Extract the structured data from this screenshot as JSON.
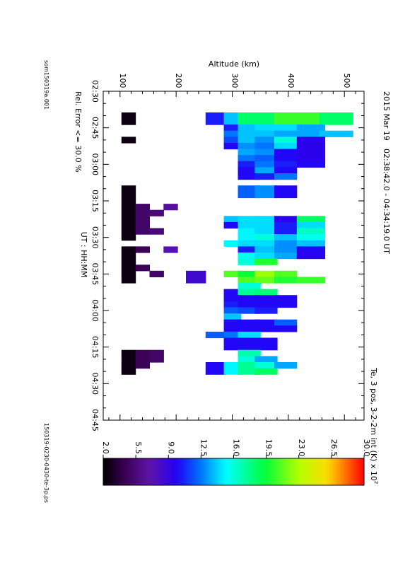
{
  "header": {
    "date": "2015 Mar 19",
    "time_range": "02:38:42.0 - 04:34:19.0 UT",
    "parameter": "Te, 3 pos, 3-2-2m int (K) x 10",
    "parameter_exponent": "2"
  },
  "footer": {
    "rel_error": "Rel. Error <= 30.0 %",
    "left_id": "som150319a.001",
    "right_id": "150319-0230-0430-te-3p.ps"
  },
  "chart_data": {
    "type": "heatmap",
    "title": "",
    "xlabel": "UT : HH:MM",
    "ylabel": "Altitude (km)",
    "x_ticks": [
      "02:30",
      "02:45",
      "03:00",
      "03:15",
      "03:30",
      "03:45",
      "04:00",
      "04:15",
      "04:30",
      "04:45"
    ],
    "y_ticks": [
      "100",
      "200",
      "300",
      "400",
      "500"
    ],
    "x_range_minutes_ut": [
      150,
      285
    ],
    "y_range_km": [
      70,
      535
    ],
    "colorbar": {
      "range": [
        2.0,
        30.0
      ],
      "ticks": [
        "2.0",
        "5.5",
        "9.0",
        "12.5",
        "16.0",
        "19.5",
        "23.0",
        "26.5",
        "30.0"
      ]
    },
    "cell_width_minutes": 2.5,
    "altitude_bins_km": [
      115,
      140,
      165,
      190,
      235,
      270,
      300,
      330,
      360,
      395,
      440,
      485
    ],
    "altitude_bin_heights_km": [
      25,
      25,
      25,
      25,
      35,
      35,
      30,
      40,
      40,
      40,
      50,
      60
    ],
    "columns": [
      {
        "t": "02:38:42",
        "values": [
          2.5,
          null,
          null,
          null,
          null,
          10.5,
          14.0,
          18.5,
          18.5,
          20.5,
          20.5,
          18.5
        ]
      },
      {
        "t": "02:41:11",
        "values": [
          2.5,
          null,
          null,
          null,
          null,
          10.5,
          14.0,
          18.5,
          18.5,
          20.5,
          20.5,
          18.5
        ]
      },
      {
        "t": "02:43:41",
        "values": [
          null,
          null,
          null,
          null,
          null,
          null,
          10.5,
          14.0,
          14.5,
          14.5,
          13.5,
          null
        ]
      },
      {
        "t": "02:46:11",
        "values": [
          null,
          null,
          null,
          null,
          null,
          null,
          12.5,
          14.0,
          14.0,
          13.5,
          13.5,
          14.0
        ]
      },
      {
        "t": "02:48:41",
        "values": [
          2.5,
          null,
          null,
          null,
          null,
          null,
          11.5,
          14.0,
          13.0,
          16.0,
          9.5,
          null
        ]
      },
      {
        "t": "02:51:11",
        "values": [
          null,
          null,
          null,
          null,
          null,
          null,
          10.0,
          13.0,
          12.5,
          14.5,
          9.5,
          null
        ]
      },
      {
        "t": "02:53:41",
        "values": [
          null,
          null,
          null,
          null,
          null,
          null,
          null,
          13.5,
          13.0,
          10.0,
          9.5,
          null
        ]
      },
      {
        "t": "02:56:11",
        "values": [
          null,
          null,
          null,
          null,
          null,
          null,
          null,
          12.5,
          12.0,
          10.0,
          9.5,
          null
        ]
      },
      {
        "t": "02:58:41",
        "values": [
          null,
          null,
          null,
          null,
          null,
          null,
          null,
          10.5,
          12.5,
          10.5,
          10.0,
          null
        ]
      },
      {
        "t": "03:01:11",
        "values": [
          null,
          null,
          null,
          null,
          null,
          null,
          null,
          10.0,
          13.5,
          10.0,
          null,
          null
        ]
      },
      {
        "t": "03:03:41",
        "values": [
          null,
          null,
          null,
          null,
          null,
          null,
          null,
          10.0,
          10.5,
          12.5,
          null,
          null
        ]
      },
      {
        "t": "03:08:41",
        "values": [
          2.5,
          null,
          null,
          null,
          null,
          null,
          null,
          12.0,
          13.0,
          10.0,
          null,
          null
        ]
      },
      {
        "t": "03:11:11",
        "values": [
          2.5,
          null,
          null,
          null,
          null,
          null,
          null,
          12.0,
          13.0,
          10.0,
          null,
          null
        ]
      },
      {
        "t": "03:13:41",
        "values": [
          2.5,
          null,
          null,
          null,
          null,
          null,
          null,
          null,
          null,
          null,
          null,
          null
        ]
      },
      {
        "t": "03:16:11",
        "values": [
          2.5,
          5.0,
          null,
          6.5,
          null,
          null,
          null,
          null,
          null,
          null,
          null,
          null
        ]
      },
      {
        "t": "03:18:41",
        "values": [
          2.5,
          5.0,
          5.5,
          null,
          null,
          null,
          null,
          null,
          null,
          null,
          null,
          null
        ]
      },
      {
        "t": "03:21:11",
        "values": [
          2.5,
          5.0,
          null,
          null,
          null,
          null,
          14.0,
          14.5,
          14.5,
          9.5,
          18.5,
          null
        ]
      },
      {
        "t": "03:23:41",
        "values": [
          2.5,
          5.0,
          null,
          null,
          null,
          null,
          10.0,
          14.5,
          14.5,
          10.5,
          14.5,
          null
        ]
      },
      {
        "t": "03:26:11",
        "values": [
          2.5,
          5.0,
          5.5,
          null,
          null,
          null,
          null,
          15.0,
          14.5,
          10.5,
          16.5,
          null
        ]
      },
      {
        "t": "03:28:41",
        "values": [
          2.5,
          null,
          null,
          null,
          null,
          null,
          null,
          15.0,
          16.0,
          14.0,
          15.5,
          null
        ]
      },
      {
        "t": "03:31:11",
        "values": [
          null,
          null,
          null,
          null,
          null,
          null,
          15.0,
          14.5,
          14.5,
          13.0,
          14.0,
          null
        ]
      },
      {
        "t": "03:33:41",
        "values": [
          2.5,
          4.5,
          null,
          7.5,
          null,
          null,
          null,
          10.5,
          14.0,
          13.0,
          10.0,
          null
        ]
      },
      {
        "t": "03:36:11",
        "values": [
          2.5,
          null,
          null,
          null,
          null,
          null,
          null,
          15.5,
          14.5,
          13.5,
          9.5,
          null
        ]
      },
      {
        "t": "03:38:41",
        "values": [
          2.5,
          null,
          null,
          null,
          null,
          null,
          null,
          16.0,
          20.0,
          null,
          null,
          null
        ]
      },
      {
        "t": "03:41:11",
        "values": [
          2.5,
          4.5,
          null,
          null,
          null,
          null,
          null,
          null,
          null,
          null,
          null,
          null
        ]
      },
      {
        "t": "03:43:41",
        "values": [
          2.5,
          null,
          5.0,
          null,
          8.5,
          null,
          21.0,
          19.5,
          22.5,
          21.0,
          null,
          null
        ]
      },
      {
        "t": "03:46:11",
        "values": [
          2.5,
          null,
          null,
          null,
          8.5,
          null,
          null,
          21.0,
          21.5,
          20.0,
          20.5,
          null
        ]
      },
      {
        "t": "03:48:41",
        "values": [
          null,
          null,
          null,
          null,
          null,
          null,
          null,
          16.0,
          null,
          null,
          null,
          null
        ]
      },
      {
        "t": "03:51:11",
        "values": [
          null,
          null,
          null,
          null,
          null,
          null,
          10.0,
          17.5,
          18.0,
          null,
          null,
          null
        ]
      },
      {
        "t": "03:53:41",
        "values": [
          null,
          null,
          null,
          null,
          null,
          null,
          10.0,
          10.0,
          10.0,
          10.0,
          null,
          null
        ]
      },
      {
        "t": "03:56:11",
        "values": [
          null,
          null,
          null,
          null,
          null,
          null,
          10.5,
          10.0,
          10.0,
          10.0,
          null,
          null
        ]
      },
      {
        "t": "03:58:41",
        "values": [
          null,
          null,
          null,
          null,
          null,
          null,
          12.0,
          11.5,
          10.5,
          null,
          null,
          null
        ]
      },
      {
        "t": "04:01:11",
        "values": [
          null,
          null,
          null,
          null,
          null,
          null,
          14.0,
          null,
          null,
          null,
          null,
          null
        ]
      },
      {
        "t": "04:03:41",
        "values": [
          null,
          null,
          null,
          null,
          null,
          null,
          10.0,
          10.0,
          10.0,
          12.0,
          null,
          null
        ]
      },
      {
        "t": "04:06:11",
        "values": [
          null,
          null,
          null,
          null,
          null,
          null,
          10.0,
          10.0,
          10.0,
          10.0,
          null,
          null
        ]
      },
      {
        "t": "04:08:41",
        "values": [
          null,
          null,
          null,
          null,
          null,
          12.0,
          12.5,
          14.5,
          null,
          null,
          null,
          null
        ]
      },
      {
        "t": "04:11:11",
        "values": [
          null,
          null,
          null,
          null,
          null,
          null,
          10.0,
          10.0,
          10.0,
          null,
          null,
          null
        ]
      },
      {
        "t": "04:13:41",
        "values": [
          null,
          null,
          null,
          null,
          null,
          null,
          10.0,
          10.0,
          10.0,
          null,
          null,
          null
        ]
      },
      {
        "t": "04:16:11",
        "values": [
          2.5,
          4.5,
          5.0,
          null,
          null,
          null,
          null,
          17.0,
          null,
          null,
          null,
          null
        ]
      },
      {
        "t": "04:18:41",
        "values": [
          2.5,
          4.5,
          5.0,
          null,
          null,
          null,
          null,
          16.0,
          13.5,
          null,
          null,
          null
        ]
      },
      {
        "t": "04:21:11",
        "values": [
          2.5,
          4.5,
          null,
          null,
          null,
          10.0,
          15.0,
          17.5,
          16.0,
          13.5,
          null,
          null
        ]
      },
      {
        "t": "04:23:41",
        "values": [
          2.5,
          null,
          null,
          null,
          null,
          10.0,
          15.0,
          17.5,
          18.5,
          null,
          null,
          null
        ]
      }
    ]
  }
}
